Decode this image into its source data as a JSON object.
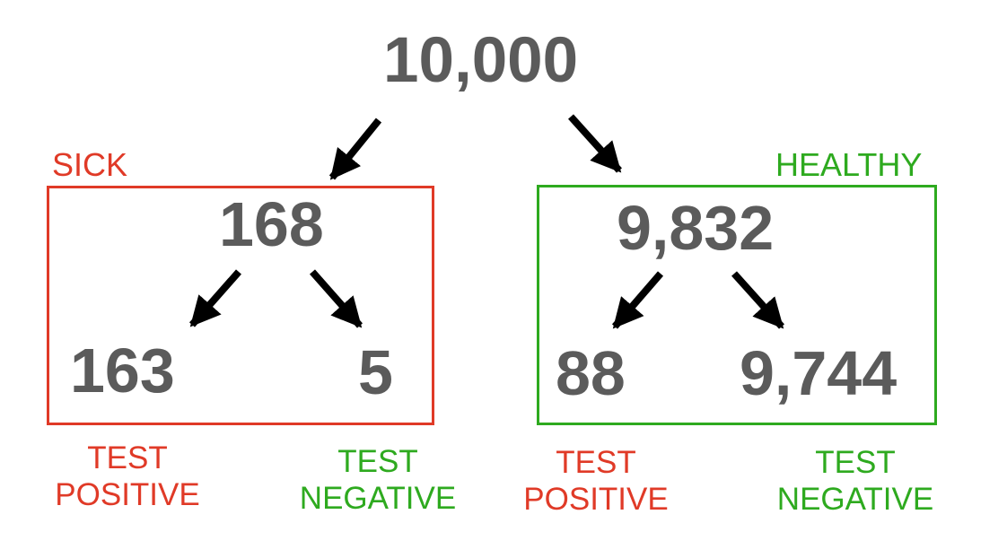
{
  "colors": {
    "number": "#5b5b5b",
    "sick": "#e03a27",
    "healthy": "#2eaa1f",
    "arrow": "#000000"
  },
  "root": {
    "value": "10,000"
  },
  "sick": {
    "label": "SICK",
    "total": "168",
    "test_positive": "163",
    "test_negative": "5"
  },
  "healthy": {
    "label": "HEALTHY",
    "total": "9,832",
    "test_positive": "88",
    "test_negative": "9,744"
  },
  "labels": {
    "test": "TEST",
    "positive": "POSITIVE",
    "negative": "NEGATIVE"
  }
}
